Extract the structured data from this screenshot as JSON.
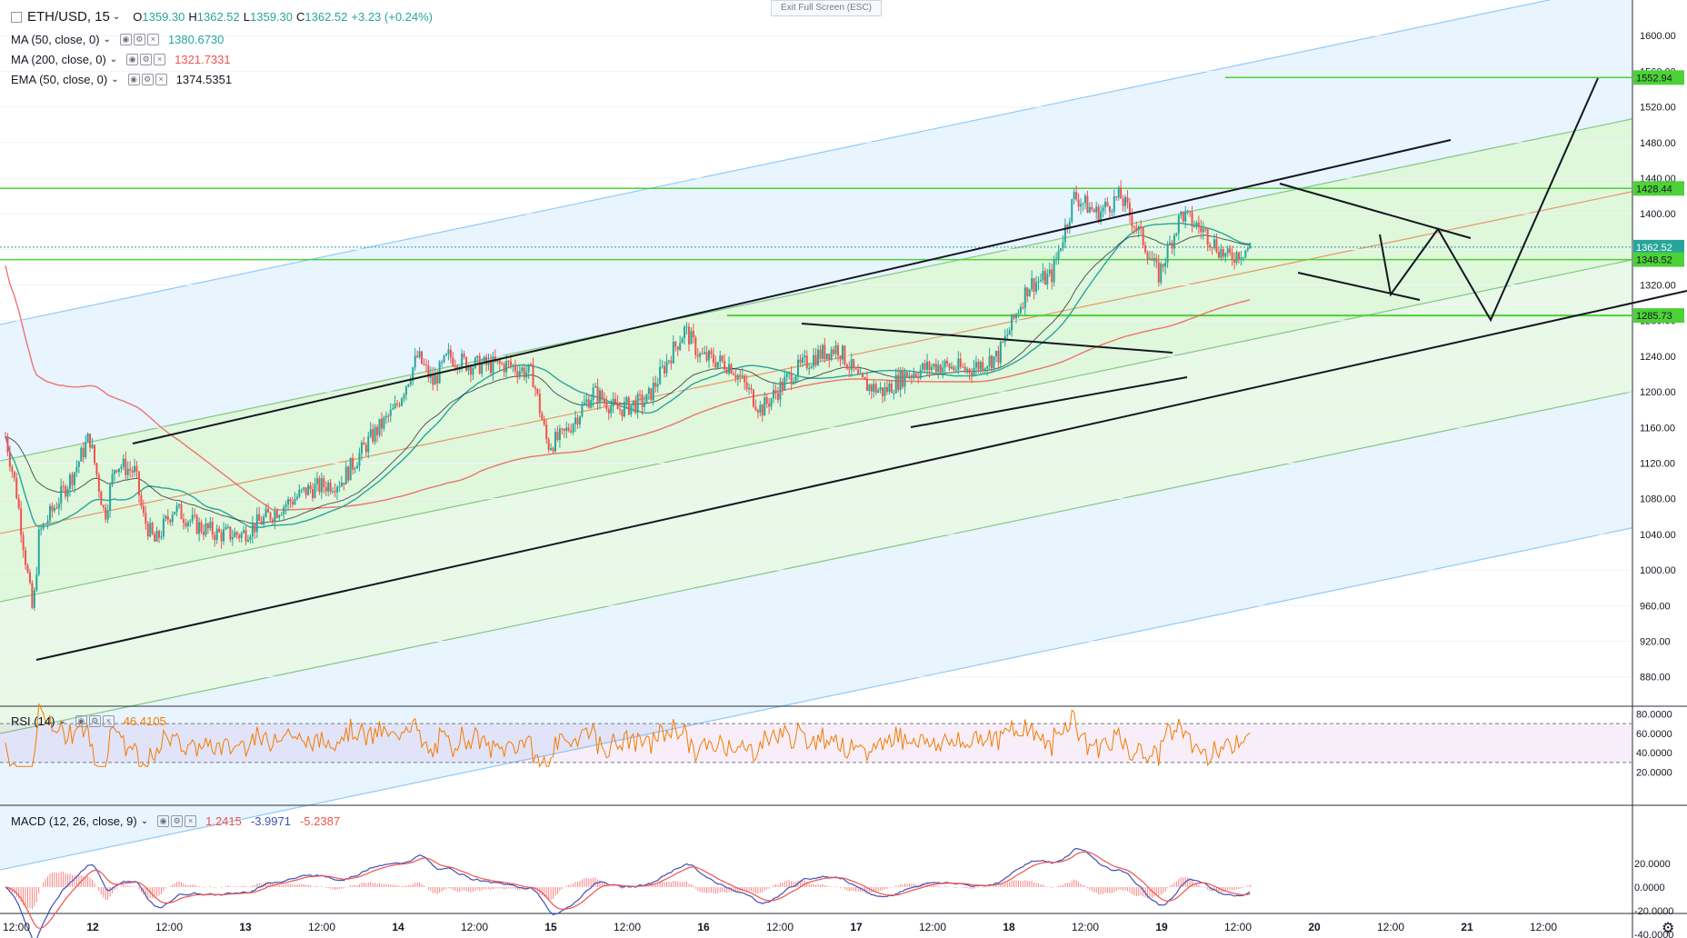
{
  "header": {
    "symbol": "ETH/USD, 15",
    "open_label": "O",
    "open": "1359.30",
    "high_label": "H",
    "high": "1362.52",
    "low_label": "L",
    "low": "1359.30",
    "close_label": "C",
    "close": "1362.52",
    "change": "+3.23 (+0.24%)"
  },
  "exit_fullscreen": "Exit Full Screen (ESC)",
  "indicators": [
    {
      "label": "MA (50, close, 0)",
      "value": "1380.6730",
      "color": "#26a69a"
    },
    {
      "label": "MA (200, close, 0)",
      "value": "1321.7331",
      "color": "#ef5350"
    },
    {
      "label": "EMA (50, close, 0)",
      "value": "1374.5351",
      "color": "#131722"
    }
  ],
  "rsi": {
    "label": "RSI (14)",
    "value": "46.4105",
    "color": "#f57c00"
  },
  "macd": {
    "label": "MACD (12, 26, close, 9)",
    "v1": "1.2415",
    "v2": "-3.9971",
    "v3": "-5.2387",
    "c1": "#ef5350",
    "c2": "#3f51b5",
    "c3": "#ef5350"
  },
  "chart_data": {
    "type": "candlestick",
    "y_ticks": [
      "1600.00",
      "1560.00",
      "1520.00",
      "1480.00",
      "1440.00",
      "1400.00",
      "1360.00",
      "1320.00",
      "1280.00",
      "1240.00",
      "1200.00",
      "1160.00",
      "1120.00",
      "1080.00",
      "1040.00",
      "1000.00",
      "960.00",
      "920.00",
      "880.00"
    ],
    "y_tick_values": [
      1600,
      1560,
      1520,
      1480,
      1440,
      1400,
      1360,
      1320,
      1280,
      1240,
      1200,
      1160,
      1120,
      1080,
      1040,
      1000,
      960,
      920,
      880
    ],
    "ylim": [
      848,
      1640
    ],
    "x_ticks": [
      "12:00",
      "12",
      "12:00",
      "13",
      "12:00",
      "14",
      "12:00",
      "15",
      "12:00",
      "16",
      "12:00",
      "17",
      "12:00",
      "18",
      "12:00",
      "19",
      "12:00",
      "20",
      "12:00",
      "21",
      "12:00"
    ],
    "price_labels": [
      {
        "value": 1552.94,
        "text": "1552.94",
        "color": "#4cd137"
      },
      {
        "value": 1428.44,
        "text": "1428.44",
        "color": "#4cd137"
      },
      {
        "value": 1362.52,
        "text": "1362.52",
        "color": "#26a69a"
      },
      {
        "value": 1348.52,
        "text": "1348.52",
        "color": "#4cd137"
      },
      {
        "value": 1285.73,
        "text": "1285.73",
        "color": "#4cd137"
      }
    ],
    "rsi_ticks": [
      "80.0000",
      "60.0000",
      "40.0000",
      "20.0000"
    ],
    "rsi_tick_values": [
      80,
      60,
      40,
      20
    ],
    "rsi_levels": [
      70,
      30
    ],
    "macd_ticks": [
      "20.0000",
      "0.0000",
      "-20.0000",
      "-40.0000"
    ],
    "macd_tick_values": [
      20,
      0,
      -20,
      -40
    ],
    "key_points": [
      {
        "t": 0,
        "p": 1150
      },
      {
        "t": 0.07,
        "p": 1090
      },
      {
        "t": 0.18,
        "p": 950
      },
      {
        "t": 0.22,
        "p": 1040
      },
      {
        "t": 0.45,
        "p": 1110
      },
      {
        "t": 0.55,
        "p": 1150
      },
      {
        "t": 0.65,
        "p": 1060
      },
      {
        "t": 0.72,
        "p": 1120
      },
      {
        "t": 0.85,
        "p": 1110
      },
      {
        "t": 0.9,
        "p": 1060
      },
      {
        "t": 0.98,
        "p": 1030
      },
      {
        "t": 1.1,
        "p": 1070
      },
      {
        "t": 1.25,
        "p": 1050
      },
      {
        "t": 1.4,
        "p": 1040
      },
      {
        "t": 1.55,
        "p": 1040
      },
      {
        "t": 1.8,
        "p": 1070
      },
      {
        "t": 1.98,
        "p": 1090
      },
      {
        "t": 2.2,
        "p": 1100
      },
      {
        "t": 2.4,
        "p": 1150
      },
      {
        "t": 2.55,
        "p": 1180
      },
      {
        "t": 2.7,
        "p": 1240
      },
      {
        "t": 2.8,
        "p": 1210
      },
      {
        "t": 2.9,
        "p": 1240
      },
      {
        "t": 3.05,
        "p": 1230
      },
      {
        "t": 3.3,
        "p": 1230
      },
      {
        "t": 3.45,
        "p": 1220
      },
      {
        "t": 3.55,
        "p": 1140
      },
      {
        "t": 3.65,
        "p": 1150
      },
      {
        "t": 3.85,
        "p": 1200
      },
      {
        "t": 4.0,
        "p": 1180
      },
      {
        "t": 4.2,
        "p": 1190
      },
      {
        "t": 4.35,
        "p": 1240
      },
      {
        "t": 4.45,
        "p": 1270
      },
      {
        "t": 4.55,
        "p": 1240
      },
      {
        "t": 4.75,
        "p": 1230
      },
      {
        "t": 4.95,
        "p": 1180
      },
      {
        "t": 5.15,
        "p": 1220
      },
      {
        "t": 5.3,
        "p": 1240
      },
      {
        "t": 5.45,
        "p": 1250
      },
      {
        "t": 5.6,
        "p": 1210
      },
      {
        "t": 5.75,
        "p": 1200
      },
      {
        "t": 5.9,
        "p": 1220
      },
      {
        "t": 6.1,
        "p": 1230
      },
      {
        "t": 6.3,
        "p": 1225
      },
      {
        "t": 6.5,
        "p": 1240
      },
      {
        "t": 6.7,
        "p": 1320
      },
      {
        "t": 6.85,
        "p": 1330
      },
      {
        "t": 7.0,
        "p": 1420
      },
      {
        "t": 7.15,
        "p": 1400
      },
      {
        "t": 7.3,
        "p": 1420
      },
      {
        "t": 7.45,
        "p": 1370
      },
      {
        "t": 7.55,
        "p": 1330
      },
      {
        "t": 7.7,
        "p": 1400
      },
      {
        "t": 7.85,
        "p": 1380
      },
      {
        "t": 8.0,
        "p": 1350
      },
      {
        "t": 8.15,
        "p": 1362.5
      }
    ]
  }
}
